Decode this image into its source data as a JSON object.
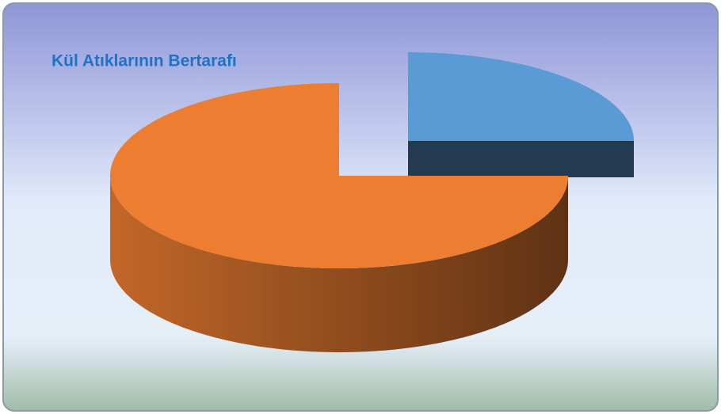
{
  "chart_data": {
    "type": "pie",
    "title": "Kül Atıklarının Bertarafı",
    "categories": [
      null,
      null
    ],
    "values": [
      25,
      75
    ],
    "colors": [
      "#5b9bd5",
      "#ed7d31"
    ]
  }
}
